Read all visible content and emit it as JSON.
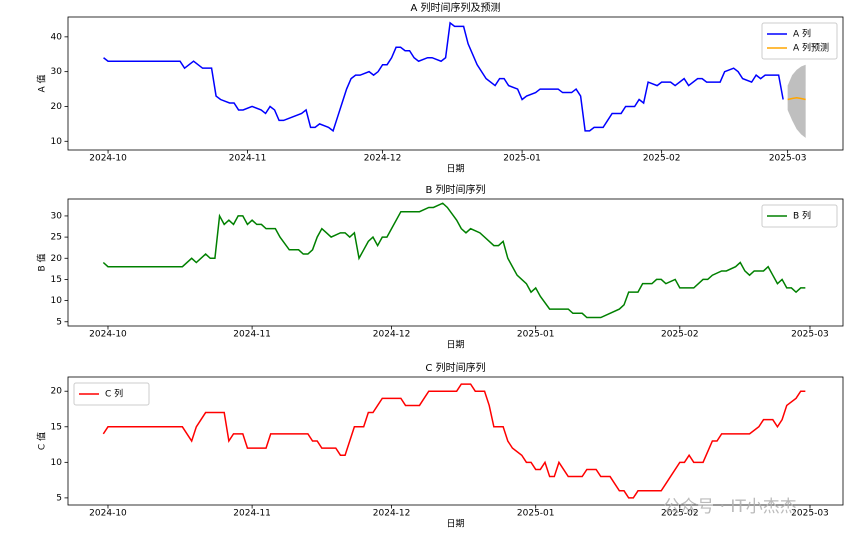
{
  "chart_data": [
    {
      "type": "line",
      "title": "A 列时间序列及预测",
      "x_label": "日期",
      "y_label": "A 值",
      "xlim": [
        -8.9,
        163.3
      ],
      "ylim": [
        7.5,
        45.7
      ],
      "legend": "upper right",
      "xticks": [
        {
          "value": 0,
          "label": "2024-10"
        },
        {
          "value": 31,
          "label": "2024-11"
        },
        {
          "value": 61,
          "label": "2024-12"
        },
        {
          "value": 92,
          "label": "2025-01"
        },
        {
          "value": 123,
          "label": "2025-02"
        },
        {
          "value": 151,
          "label": "2025-03"
        }
      ],
      "yticks": [
        10,
        20,
        30,
        40
      ],
      "series": [
        {
          "name": "A 列",
          "color": "#0000ff",
          "x": [
            -1,
            0,
            16,
            17,
            19,
            20,
            21,
            23,
            24,
            25,
            27,
            28,
            29,
            30,
            32,
            34,
            35,
            36,
            37,
            38,
            39,
            41,
            43,
            44,
            45,
            46,
            47,
            49,
            50,
            51,
            52,
            53,
            54,
            55,
            56,
            58,
            59,
            60,
            61,
            62,
            63,
            64,
            65,
            66,
            67,
            68,
            69,
            71,
            72,
            74,
            75,
            76,
            77,
            79,
            80,
            82,
            84,
            86,
            87,
            88,
            89,
            91,
            92,
            93,
            95,
            96,
            100,
            101,
            103,
            104,
            105,
            106,
            107,
            108,
            110,
            111,
            112,
            114,
            115,
            117,
            118,
            119,
            120,
            122,
            123,
            125,
            126,
            128,
            129,
            131,
            132,
            133,
            136,
            137,
            139,
            140,
            141,
            143,
            144,
            145,
            146,
            149,
            150
          ],
          "values": [
            34,
            33,
            33,
            31,
            33,
            32,
            31,
            31,
            23,
            22,
            21,
            21,
            19,
            19,
            20,
            19,
            18,
            20,
            19,
            16,
            16,
            17,
            18,
            19,
            14,
            14,
            15,
            14,
            13,
            17,
            21,
            25,
            28,
            29,
            29,
            30,
            29,
            30,
            32,
            32,
            34,
            37,
            37,
            36,
            36,
            34,
            33,
            34,
            34,
            33,
            34,
            44,
            43,
            43,
            38,
            32,
            28,
            26,
            28,
            28,
            26,
            25,
            22,
            23,
            24,
            25,
            25,
            24,
            24,
            25,
            23,
            13,
            13,
            14,
            14,
            16,
            18,
            18,
            20,
            20,
            22,
            21,
            27,
            26,
            27,
            27,
            26,
            28,
            26,
            28,
            28,
            27,
            27,
            30,
            31,
            30,
            28,
            27,
            29,
            28,
            29,
            29,
            22
          ]
        },
        {
          "name": "A 列预测",
          "color": "#ffa500",
          "band_color": "#808080",
          "x": [
            151,
            152,
            153,
            154,
            155
          ],
          "values": [
            22,
            22.3,
            22.5,
            22.3,
            22
          ],
          "lower": [
            19,
            16,
            13.5,
            12,
            11
          ],
          "upper": [
            26,
            29,
            30.5,
            31.5,
            32
          ]
        }
      ]
    },
    {
      "type": "line",
      "title": "B 列时间序列",
      "x_label": "日期",
      "y_label": "B 值",
      "xlim": [
        -8.6,
        158.1
      ],
      "ylim": [
        4,
        34
      ],
      "legend": "upper right",
      "xticks": [
        {
          "value": 0,
          "label": "2024-10"
        },
        {
          "value": 31,
          "label": "2024-11"
        },
        {
          "value": 61,
          "label": "2024-12"
        },
        {
          "value": 92,
          "label": "2025-01"
        },
        {
          "value": 123,
          "label": "2025-02"
        },
        {
          "value": 151,
          "label": "2025-03"
        }
      ],
      "yticks": [
        5,
        10,
        15,
        20,
        25,
        30
      ],
      "series": [
        {
          "name": "B 列",
          "color": "#008000",
          "x": [
            -1,
            0,
            16,
            18,
            19,
            21,
            22,
            23,
            24,
            25,
            26,
            27,
            28,
            29,
            30,
            31,
            32,
            33,
            34,
            36,
            37,
            39,
            41,
            42,
            43,
            44,
            45,
            46,
            47,
            48,
            50,
            51,
            52,
            53,
            54,
            55,
            56,
            57,
            58,
            59,
            60,
            61,
            63,
            65,
            67,
            69,
            70,
            72,
            73,
            75,
            76,
            77,
            78,
            80,
            82,
            83,
            84,
            85,
            86,
            87,
            88,
            89,
            90,
            91,
            92,
            93,
            95,
            99,
            100,
            102,
            103,
            106,
            108,
            110,
            111,
            112,
            114,
            115,
            117,
            118,
            119,
            120,
            122,
            123,
            126,
            128,
            129,
            130,
            132,
            133,
            135,
            136,
            137,
            138,
            139,
            141,
            142,
            143,
            144,
            145,
            146,
            147,
            148,
            149,
            150
          ],
          "values": [
            19,
            18,
            18,
            20,
            19,
            21,
            20,
            20,
            30,
            28,
            29,
            28,
            30,
            30,
            28,
            29,
            28,
            28,
            27,
            27,
            25,
            22,
            22,
            21,
            21,
            22,
            25,
            27,
            26,
            25,
            26,
            26,
            25,
            26,
            20,
            22,
            24,
            25,
            23,
            25,
            25,
            27,
            31,
            31,
            31,
            32,
            32,
            33,
            32,
            29,
            27,
            26,
            27,
            26,
            24,
            23,
            23,
            24,
            20,
            18,
            16,
            15,
            14,
            12,
            13,
            11,
            8,
            8,
            7,
            7,
            6,
            6,
            7,
            8,
            9,
            12,
            12,
            14,
            14,
            15,
            15,
            14,
            15,
            13,
            13,
            15,
            15,
            16,
            17,
            17,
            18,
            19,
            17,
            16,
            17,
            17,
            18,
            16,
            14,
            15,
            13,
            13,
            12,
            13,
            13
          ]
        }
      ]
    },
    {
      "type": "line",
      "title": "C 列时间序列",
      "x_label": "日期",
      "y_label": "C 值",
      "xlim": [
        -8.6,
        158.1
      ],
      "ylim": [
        4,
        22
      ],
      "legend": "upper left",
      "xticks": [
        {
          "value": 0,
          "label": "2024-10"
        },
        {
          "value": 31,
          "label": "2024-11"
        },
        {
          "value": 61,
          "label": "2024-12"
        },
        {
          "value": 92,
          "label": "2025-01"
        },
        {
          "value": 123,
          "label": "2025-02"
        },
        {
          "value": 151,
          "label": "2025-03"
        }
      ],
      "yticks": [
        5,
        10,
        15,
        20
      ],
      "series": [
        {
          "name": "C 列",
          "color": "#ff0000",
          "x": [
            -1,
            0,
            16,
            18,
            19,
            21,
            25,
            26,
            27,
            29,
            30,
            34,
            35,
            43,
            44,
            45,
            46,
            49,
            50,
            51,
            52,
            53,
            55,
            56,
            57,
            58,
            59,
            63,
            64,
            67,
            68,
            69,
            75,
            76,
            78,
            79,
            81,
            82,
            83,
            85,
            86,
            87,
            89,
            90,
            91,
            92,
            93,
            94,
            95,
            96,
            97,
            98,
            99,
            102,
            103,
            105,
            106,
            108,
            109,
            110,
            111,
            112,
            113,
            114,
            118,
            119,
            120,
            121,
            123,
            124,
            125,
            126,
            128,
            130,
            131,
            132,
            138,
            140,
            141,
            143,
            144,
            145,
            146,
            148,
            149,
            150
          ],
          "values": [
            14,
            15,
            15,
            13,
            15,
            17,
            17,
            13,
            14,
            14,
            12,
            12,
            14,
            14,
            13,
            13,
            12,
            12,
            11,
            11,
            13,
            15,
            15,
            17,
            17,
            18,
            19,
            19,
            18,
            18,
            19,
            20,
            20,
            21,
            21,
            20,
            20,
            18,
            15,
            15,
            13,
            12,
            11,
            10,
            10,
            9,
            9,
            10,
            8,
            8,
            10,
            9,
            8,
            8,
            9,
            9,
            8,
            8,
            7,
            6,
            6,
            5,
            5,
            6,
            6,
            6,
            7,
            8,
            10,
            10,
            11,
            10,
            10,
            13,
            13,
            14,
            14,
            15,
            16,
            16,
            15,
            16,
            18,
            19,
            20,
            20
          ]
        }
      ]
    }
  ],
  "watermark": "公众号 · IT小杰杰"
}
